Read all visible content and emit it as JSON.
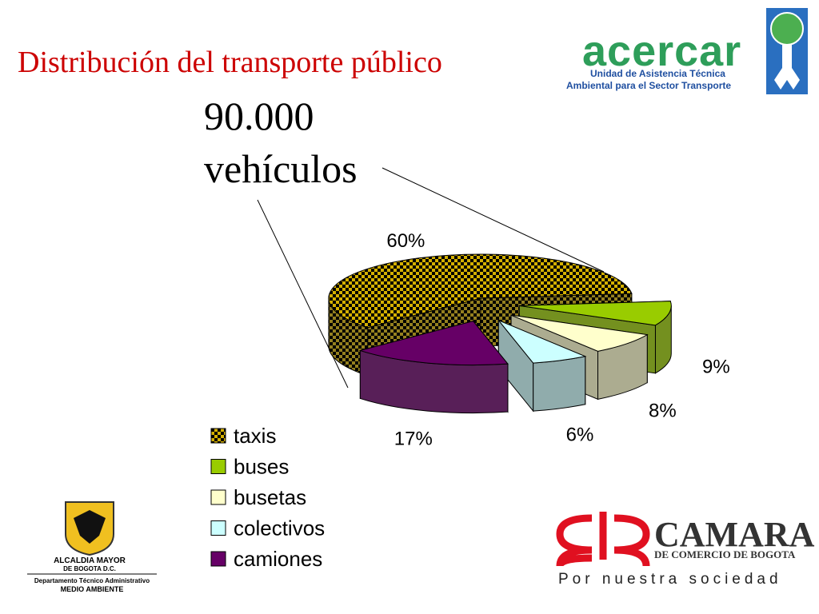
{
  "chart_data": {
    "type": "pie",
    "title": "Distribución del transporte público",
    "annotation": [
      "90.000",
      "vehículos"
    ],
    "categories": [
      "taxis",
      "buses",
      "busetas",
      "colectivos",
      "camiones"
    ],
    "values": [
      60,
      9,
      8,
      6,
      17
    ],
    "value_labels": [
      "60%",
      "9%",
      "8%",
      "6%",
      "17%"
    ],
    "colors": [
      "#d4b000",
      "#99cc00",
      "#ffffcc",
      "#ccffff",
      "#660066"
    ],
    "patterns": [
      "checker",
      "solid",
      "solid",
      "solid",
      "solid"
    ],
    "legend": "left"
  },
  "acercar": {
    "name": "acercar",
    "lines": [
      "Unidad de Asistencia Técnica",
      "Ambiental para el Sector Transporte"
    ]
  },
  "alcaldia": {
    "lines": [
      "ALCALDIA MAYOR",
      "DE BOGOTA D.C.",
      "Departamento Técnico Administrativo",
      "MEDIO AMBIENTE"
    ]
  },
  "camara": {
    "name": "CAMARA",
    "subtitle": "DE COMERCIO DE BOGOTA",
    "slogan": "Por nuestra sociedad"
  }
}
